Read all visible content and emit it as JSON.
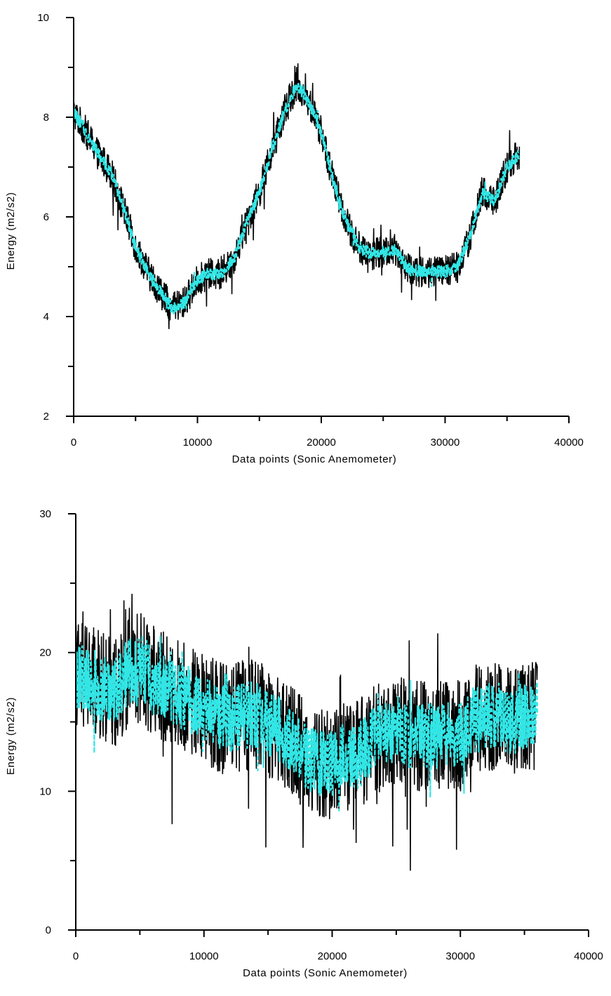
{
  "chart_data": [
    {
      "type": "line",
      "xlabel": "Data points (Sonic Anemometer)",
      "ylabel": "Energy (m2/s2)",
      "xlim": [
        0,
        40000
      ],
      "ylim": [
        2,
        10
      ],
      "x_major_ticks": [
        0,
        10000,
        20000,
        30000,
        40000
      ],
      "x_tick_labels": [
        "0",
        "10000",
        "20000",
        "30000",
        "40000"
      ],
      "x_minor_ticks": [
        5000,
        15000,
        25000,
        35000
      ],
      "y_major_ticks": [
        2,
        4,
        6,
        8,
        10
      ],
      "y_tick_labels": [
        "2",
        "4",
        "6",
        "8",
        "10"
      ],
      "y_minor_ticks": [
        3,
        5,
        7,
        9
      ],
      "grid": false,
      "x_range": [
        0,
        36000
      ],
      "series": [
        {
          "color": "#000000",
          "style": "solid",
          "noise_amplitude": 0.32,
          "spike_amplitude": 0.55,
          "x": [
            0,
            1000,
            2000,
            3000,
            4000,
            5000,
            6000,
            7000,
            8000,
            9000,
            10000,
            11000,
            12000,
            13000,
            14000,
            15000,
            16000,
            17000,
            18000,
            19000,
            20000,
            21000,
            22000,
            23000,
            24000,
            25000,
            26000,
            27000,
            28000,
            29000,
            30000,
            31000,
            32000,
            33000,
            34000,
            35000,
            36000
          ],
          "values": [
            8.1,
            7.7,
            7.25,
            6.9,
            6.2,
            5.4,
            4.9,
            4.5,
            4.15,
            4.3,
            4.75,
            4.85,
            4.85,
            5.2,
            5.9,
            6.5,
            7.3,
            8.1,
            8.65,
            8.3,
            7.7,
            6.7,
            5.9,
            5.4,
            5.25,
            5.3,
            5.35,
            4.95,
            4.9,
            4.9,
            4.9,
            5.0,
            5.6,
            6.5,
            6.3,
            7.0,
            7.25
          ]
        },
        {
          "color": "#33e6e6",
          "style": "dashed",
          "noise_amplitude": 0.12,
          "spike_amplitude": 0.2,
          "x": [
            0,
            1000,
            2000,
            3000,
            4000,
            5000,
            6000,
            7000,
            8000,
            9000,
            10000,
            11000,
            12000,
            13000,
            14000,
            15000,
            16000,
            17000,
            18000,
            19000,
            20000,
            21000,
            22000,
            23000,
            24000,
            25000,
            26000,
            27000,
            28000,
            29000,
            30000,
            31000,
            32000,
            33000,
            34000,
            35000,
            36000
          ],
          "values": [
            8.1,
            7.7,
            7.25,
            6.9,
            6.2,
            5.4,
            4.9,
            4.5,
            4.15,
            4.3,
            4.75,
            4.85,
            4.85,
            5.2,
            5.9,
            6.5,
            7.3,
            8.1,
            8.65,
            8.3,
            7.7,
            6.7,
            5.9,
            5.4,
            5.25,
            5.3,
            5.35,
            4.95,
            4.9,
            4.9,
            4.9,
            5.0,
            5.6,
            6.5,
            6.3,
            7.0,
            7.25
          ]
        }
      ]
    },
    {
      "type": "line",
      "xlabel": "Data points (Sonic Anemometer)",
      "ylabel": "Energy (m2/s2)",
      "xlim": [
        0,
        40000
      ],
      "ylim": [
        0,
        30
      ],
      "x_major_ticks": [
        0,
        10000,
        20000,
        30000,
        40000
      ],
      "x_tick_labels": [
        "0",
        "10000",
        "20000",
        "30000",
        "40000"
      ],
      "x_minor_ticks": [
        5000,
        15000,
        25000,
        35000
      ],
      "y_major_ticks": [
        0,
        10,
        20,
        30
      ],
      "y_tick_labels": [
        "0",
        "10",
        "20",
        "30"
      ],
      "y_minor_ticks": [
        5,
        15,
        25
      ],
      "grid": false,
      "x_range": [
        0,
        36000
      ],
      "series": [
        {
          "color": "#000000",
          "style": "solid",
          "noise_amplitude": 4.0,
          "spike_amplitude": 6.5,
          "x": [
            0,
            1000,
            2000,
            3000,
            4000,
            5000,
            6000,
            7000,
            8000,
            9000,
            10000,
            11000,
            12000,
            13000,
            14000,
            15000,
            16000,
            17000,
            18000,
            19000,
            20000,
            21000,
            22000,
            23000,
            24000,
            25000,
            26000,
            27000,
            28000,
            29000,
            30000,
            31000,
            32000,
            33000,
            34000,
            35000,
            36000
          ],
          "values": [
            18.5,
            18.0,
            17.5,
            17.0,
            18.5,
            19.0,
            18.0,
            17.5,
            17.0,
            16.5,
            16.0,
            15.5,
            15.0,
            15.5,
            15.5,
            15.0,
            14.5,
            13.5,
            12.5,
            12.0,
            12.0,
            12.5,
            12.5,
            13.5,
            14.0,
            14.5,
            14.0,
            14.0,
            14.0,
            14.0,
            14.0,
            15.0,
            15.5,
            15.5,
            15.0,
            15.5,
            15.5
          ]
        },
        {
          "color": "#33e6e6",
          "style": "dashed",
          "noise_amplitude": 2.4,
          "spike_amplitude": 3.5,
          "x": [
            0,
            1000,
            2000,
            3000,
            4000,
            5000,
            6000,
            7000,
            8000,
            9000,
            10000,
            11000,
            12000,
            13000,
            14000,
            15000,
            16000,
            17000,
            18000,
            19000,
            20000,
            21000,
            22000,
            23000,
            24000,
            25000,
            26000,
            27000,
            28000,
            29000,
            30000,
            31000,
            32000,
            33000,
            34000,
            35000,
            36000
          ],
          "values": [
            18.5,
            18.0,
            17.5,
            17.0,
            18.5,
            19.0,
            18.0,
            17.5,
            17.0,
            16.5,
            16.0,
            15.5,
            15.0,
            15.5,
            15.5,
            15.0,
            14.5,
            13.5,
            12.5,
            12.0,
            12.0,
            12.5,
            12.5,
            13.5,
            14.0,
            14.5,
            14.0,
            14.0,
            14.0,
            14.0,
            14.0,
            15.0,
            15.5,
            15.5,
            15.0,
            15.5,
            15.5
          ]
        }
      ]
    }
  ]
}
